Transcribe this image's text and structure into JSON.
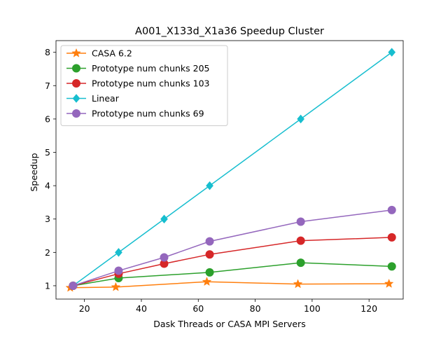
{
  "chart_data": {
    "type": "line",
    "title": "A001_X133d_X1a36 Speedup Cluster",
    "xlabel": "Dask Threads or CASA MPI Servers",
    "ylabel": "Speedup",
    "xlim": [
      10,
      132
    ],
    "ylim": [
      0.6,
      8.35
    ],
    "xticks": [
      20,
      40,
      60,
      80,
      100,
      120
    ],
    "yticks": [
      1,
      2,
      3,
      4,
      5,
      6,
      7,
      8
    ],
    "grid": false,
    "legend_position": "upper-left",
    "series": [
      {
        "name": "CASA 6.2",
        "color": "#ff7f0e",
        "marker": "star",
        "x": [
          15,
          31,
          63,
          95,
          127
        ],
        "y": [
          0.94,
          0.96,
          1.12,
          1.05,
          1.06
        ]
      },
      {
        "name": "Prototype num chunks 205",
        "color": "#2ca02c",
        "marker": "circle",
        "x": [
          16,
          32,
          64,
          96,
          128
        ],
        "y": [
          1.0,
          1.23,
          1.4,
          1.69,
          1.58
        ]
      },
      {
        "name": "Prototype num chunks 103",
        "color": "#d62728",
        "marker": "circle",
        "x": [
          16,
          32,
          48,
          64,
          96,
          128
        ],
        "y": [
          1.0,
          1.36,
          1.66,
          1.94,
          2.35,
          2.45
        ]
      },
      {
        "name": "Linear",
        "color": "#17becf",
        "marker": "diamond",
        "x": [
          16,
          32,
          48,
          64,
          96,
          128
        ],
        "y": [
          1,
          2,
          3,
          4,
          6,
          8
        ]
      },
      {
        "name": "Prototype num chunks 69",
        "color": "#9467bd",
        "marker": "circle",
        "x": [
          16,
          32,
          48,
          64,
          96,
          128
        ],
        "y": [
          1.0,
          1.45,
          1.85,
          2.33,
          2.92,
          3.27
        ]
      }
    ]
  }
}
